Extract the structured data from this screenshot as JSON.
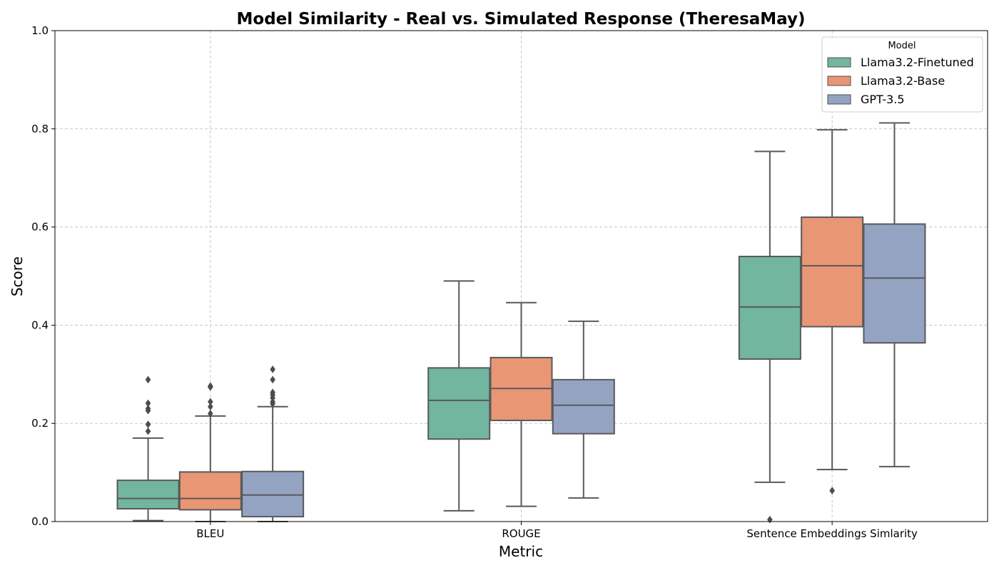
{
  "chart_data": {
    "type": "box",
    "title": "Model Similarity - Real vs. Simulated Response (TheresaMay)",
    "xlabel": "Metric",
    "ylabel": "Score",
    "ylim": [
      0,
      1
    ],
    "yticks": [
      "0.0",
      "0.2",
      "0.4",
      "0.6",
      "0.8",
      "1.0"
    ],
    "grid": true,
    "categories": [
      "BLEU",
      "ROUGE",
      "Sentence Embeddings Simlarity"
    ],
    "legend": {
      "title": "Model",
      "position": "top-right"
    },
    "series": [
      {
        "name": "Llama3.2-Finetuned",
        "color": "#72b6a0",
        "boxes": [
          {
            "whislo": 0.002,
            "q1": 0.026,
            "med": 0.047,
            "q3": 0.084,
            "whishi": 0.17,
            "fliers": [
              0.184,
              0.198,
              0.226,
              0.23,
              0.241,
              0.289
            ]
          },
          {
            "whislo": 0.022,
            "q1": 0.168,
            "med": 0.247,
            "q3": 0.313,
            "whishi": 0.49,
            "fliers": []
          },
          {
            "whislo": 0.08,
            "q1": 0.331,
            "med": 0.437,
            "q3": 0.54,
            "whishi": 0.754,
            "fliers": [
              0.004
            ]
          }
        ]
      },
      {
        "name": "Llama3.2-Base",
        "color": "#e99675",
        "boxes": [
          {
            "whislo": 0.0,
            "q1": 0.024,
            "med": 0.047,
            "q3": 0.101,
            "whishi": 0.215,
            "fliers": [
              0.22,
              0.234,
              0.244,
              0.274,
              0.276
            ]
          },
          {
            "whislo": 0.031,
            "q1": 0.206,
            "med": 0.271,
            "q3": 0.334,
            "whishi": 0.446,
            "fliers": []
          },
          {
            "whislo": 0.106,
            "q1": 0.397,
            "med": 0.521,
            "q3": 0.62,
            "whishi": 0.798,
            "fliers": [
              0.063
            ]
          }
        ]
      },
      {
        "name": "GPT-3.5",
        "color": "#95a3c3",
        "boxes": [
          {
            "whislo": 0.0,
            "q1": 0.01,
            "med": 0.054,
            "q3": 0.102,
            "whishi": 0.234,
            "fliers": [
              0.24,
              0.244,
              0.252,
              0.258,
              0.263,
              0.289,
              0.31
            ]
          },
          {
            "whislo": 0.048,
            "q1": 0.179,
            "med": 0.237,
            "q3": 0.289,
            "whishi": 0.408,
            "fliers": []
          },
          {
            "whislo": 0.112,
            "q1": 0.364,
            "med": 0.496,
            "q3": 0.606,
            "whishi": 0.812,
            "fliers": []
          }
        ]
      }
    ]
  }
}
